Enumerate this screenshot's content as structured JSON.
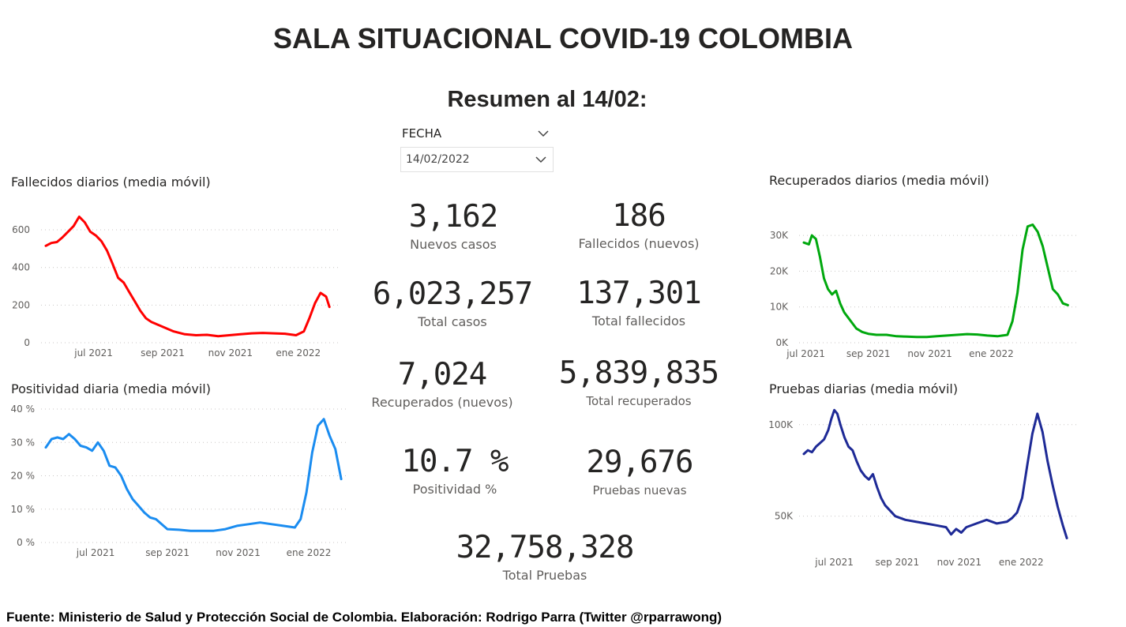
{
  "header": {
    "title": "SALA SITUACIONAL COVID-19 COLOMBIA",
    "subtitle": "Resumen al 14/02:"
  },
  "slicer": {
    "label": "FECHA",
    "selected_value": "14/02/2022"
  },
  "kpis": {
    "nuevos_casos": {
      "value": "3,162",
      "label": "Nuevos casos"
    },
    "fallecidos_nuevos": {
      "value": "186",
      "label": "Fallecidos (nuevos)"
    },
    "total_casos": {
      "value": "6,023,257",
      "label": "Total casos"
    },
    "total_fallecidos": {
      "value": "137,301",
      "label": "Total fallecidos"
    },
    "recuperados_nuevos": {
      "value": "7,024",
      "label": "Recuperados (nuevos)"
    },
    "total_recuperados": {
      "value": "5,839,835",
      "label": "Total recuperados"
    },
    "positividad": {
      "value": "10.7 %",
      "label": "Positividad %"
    },
    "pruebas_nuevas": {
      "value": "29,676",
      "label": "Pruebas nuevas"
    },
    "total_pruebas": {
      "value": "32,758,328",
      "label": "Total Pruebas"
    }
  },
  "footer": {
    "text": "Fuente: Ministerio de Salud y Protección Social de Colombia. Elaboración: Rodrigo Parra (Twitter @rparrawong)"
  },
  "chart_data": [
    {
      "id": "fallecidos",
      "type": "line",
      "title": "Fallecidos diarios (media móvil)",
      "color": "#ff0000",
      "x_tick_labels": [
        "jul 2021",
        "sep 2021",
        "nov 2021",
        "ene 2022"
      ],
      "x_ticks_days": [
        16,
        78,
        139,
        200
      ],
      "x_range_days": [
        -27,
        230
      ],
      "y_ticks": [
        0,
        200,
        400,
        600
      ],
      "y_tick_labels": [
        "0",
        "200",
        "400",
        "600"
      ],
      "ylim": [
        0,
        680
      ],
      "grid": true,
      "x_days": [
        -27,
        -22,
        -17,
        -12,
        -7,
        -2,
        3,
        8,
        13,
        18,
        23,
        28,
        33,
        38,
        43,
        48,
        53,
        58,
        63,
        68,
        78,
        88,
        98,
        108,
        118,
        128,
        138,
        148,
        158,
        168,
        178,
        188,
        198,
        205,
        210,
        215,
        220,
        225,
        228
      ],
      "values": [
        515,
        530,
        535,
        560,
        590,
        620,
        670,
        640,
        590,
        570,
        540,
        490,
        420,
        345,
        320,
        270,
        220,
        170,
        130,
        110,
        85,
        60,
        45,
        40,
        42,
        35,
        40,
        45,
        50,
        52,
        50,
        48,
        40,
        60,
        130,
        210,
        265,
        245,
        190
      ]
    },
    {
      "id": "recuperados",
      "type": "line",
      "title": "Recuperados diarios (media móvil)",
      "color": "#00a80e",
      "x_tick_labels": [
        "jul 2021",
        "sep 2021",
        "nov 2021",
        "ene 2022"
      ],
      "x_ticks_days": [
        0,
        62,
        123,
        184
      ],
      "x_range_days": [
        -2,
        262
      ],
      "y_ticks": [
        0,
        10000,
        20000,
        30000
      ],
      "y_tick_labels": [
        "0K",
        "10K",
        "20K",
        "30K"
      ],
      "ylim": [
        0,
        34000
      ],
      "grid": true,
      "x_days": [
        -2,
        3,
        6,
        10,
        14,
        18,
        22,
        26,
        30,
        34,
        38,
        42,
        46,
        50,
        56,
        62,
        70,
        80,
        90,
        100,
        110,
        120,
        130,
        140,
        150,
        160,
        170,
        180,
        190,
        200,
        205,
        210,
        215,
        220,
        225,
        230,
        235,
        240,
        245,
        250,
        255,
        260
      ],
      "values": [
        28000,
        27500,
        30000,
        29000,
        24000,
        18000,
        15000,
        13500,
        14500,
        11000,
        8500,
        7000,
        5500,
        4000,
        3000,
        2500,
        2200,
        2200,
        1800,
        1700,
        1600,
        1600,
        1800,
        2000,
        2200,
        2400,
        2300,
        2000,
        1800,
        2200,
        6000,
        14000,
        26000,
        32500,
        33000,
        31000,
        27000,
        21000,
        15000,
        13500,
        11000,
        10500
      ]
    },
    {
      "id": "positividad",
      "type": "line",
      "title": "Positividad diaria (media móvil)",
      "color": "#1a8cf0",
      "x_tick_labels": [
        "jul 2021",
        "sep 2021",
        "nov 2021",
        "ene 2022"
      ],
      "x_ticks_days": [
        16,
        78,
        139,
        200
      ],
      "x_range_days": [
        -27,
        230
      ],
      "y_ticks": [
        0,
        10,
        20,
        30,
        40
      ],
      "y_tick_labels": [
        "0 %",
        "10 %",
        "20 %",
        "30 %",
        "40 %"
      ],
      "ylim": [
        0,
        40
      ],
      "grid": true,
      "x_days": [
        -27,
        -22,
        -17,
        -12,
        -7,
        -2,
        3,
        8,
        13,
        18,
        23,
        28,
        33,
        38,
        43,
        48,
        53,
        58,
        63,
        68,
        73,
        78,
        88,
        98,
        108,
        118,
        128,
        138,
        148,
        158,
        168,
        178,
        188,
        193,
        198,
        203,
        208,
        213,
        218,
        223,
        228
      ],
      "values": [
        28.5,
        31,
        31.5,
        31,
        32.5,
        31,
        29,
        28.5,
        27.5,
        30,
        27.5,
        23,
        22.5,
        20,
        16,
        13,
        11,
        9,
        7.5,
        7,
        5.5,
        4,
        3.8,
        3.5,
        3.5,
        3.5,
        4,
        5,
        5.5,
        6,
        5.5,
        5,
        4.5,
        7,
        15,
        27,
        35,
        37,
        32,
        28,
        19
      ]
    },
    {
      "id": "pruebas",
      "type": "line",
      "title": "Pruebas diarias (media móvil)",
      "color": "#1e2a96",
      "x_tick_labels": [
        "jul 2021",
        "sep 2021",
        "nov 2021",
        "ene 2022"
      ],
      "x_ticks_days": [
        0,
        62,
        123,
        184
      ],
      "x_range_days": [
        -30,
        232
      ],
      "y_ticks": [
        50000,
        100000
      ],
      "y_tick_labels": [
        "50K",
        "100K"
      ],
      "ylim": [
        30000,
        112000
      ],
      "grid": true,
      "x_days": [
        -30,
        -26,
        -22,
        -18,
        -14,
        -10,
        -6,
        -3,
        0,
        3,
        6,
        10,
        14,
        18,
        22,
        26,
        30,
        34,
        38,
        42,
        46,
        50,
        55,
        60,
        70,
        80,
        90,
        100,
        110,
        115,
        120,
        125,
        130,
        140,
        150,
        160,
        170,
        175,
        180,
        185,
        190,
        195,
        200,
        205,
        210,
        215,
        220,
        225,
        229
      ],
      "values": [
        84000,
        86000,
        85000,
        88000,
        90000,
        92000,
        97000,
        103000,
        108000,
        106000,
        100000,
        93000,
        88000,
        86000,
        80000,
        75000,
        72000,
        70000,
        73000,
        66000,
        60000,
        56000,
        53000,
        50000,
        48000,
        47000,
        46000,
        45000,
        44000,
        40000,
        43000,
        41000,
        44000,
        46000,
        48000,
        46000,
        47000,
        49000,
        52000,
        60000,
        78000,
        95000,
        106000,
        96000,
        80000,
        67000,
        55000,
        45000,
        38000
      ]
    }
  ]
}
